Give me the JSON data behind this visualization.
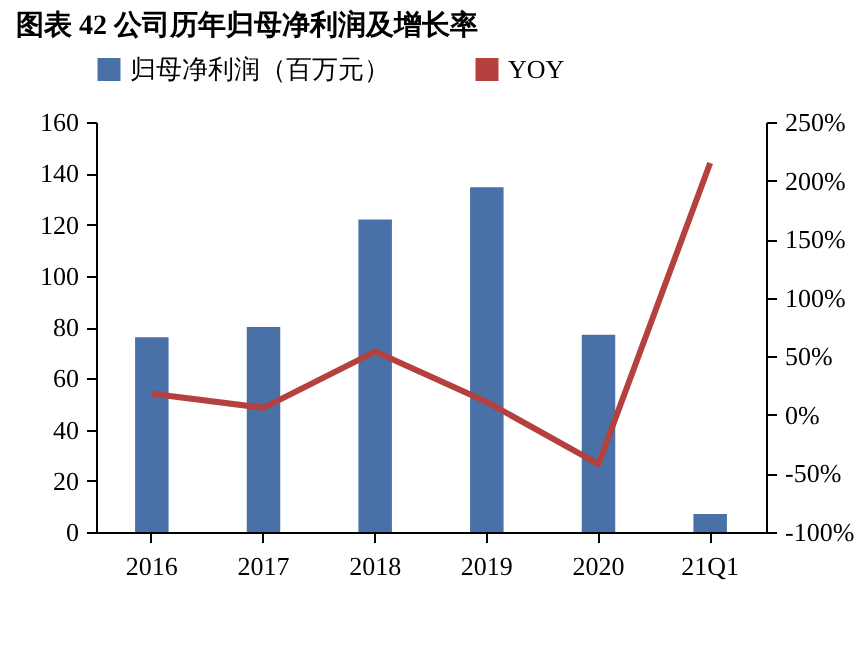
{
  "chart_data": {
    "type": "bar",
    "title": "图表 42 公司历年归母净利润及增长率",
    "categories": [
      "2016",
      "2017",
      "2018",
      "2019",
      "2020",
      "21Q1"
    ],
    "series": [
      {
        "name": "归母净利润（百万元）",
        "color": "#4a70a8",
        "values": [
          76,
          80,
          122,
          134.5,
          77,
          7
        ]
      },
      {
        "name": "YOY",
        "type": "line",
        "axis": "y2",
        "color": "#b5413f",
        "values": [
          18,
          6,
          54,
          11,
          -42,
          215
        ]
      }
    ],
    "ylim": [
      0,
      160
    ],
    "yticks": [
      0,
      20,
      40,
      60,
      80,
      100,
      120,
      140,
      160
    ],
    "y2lim": [
      -100,
      250
    ],
    "y2ticks": [
      {
        "value": -100,
        "label": "-100%"
      },
      {
        "value": -50,
        "label": "-50%"
      },
      {
        "value": 0,
        "label": "0%"
      },
      {
        "value": 50,
        "label": "50%"
      },
      {
        "value": 100,
        "label": "100%"
      },
      {
        "value": 150,
        "label": "150%"
      },
      {
        "value": 200,
        "label": "200%"
      },
      {
        "value": 250,
        "label": "250%"
      }
    ],
    "grid": false,
    "legend": "top",
    "marker": "none",
    "line_style": "solid"
  }
}
